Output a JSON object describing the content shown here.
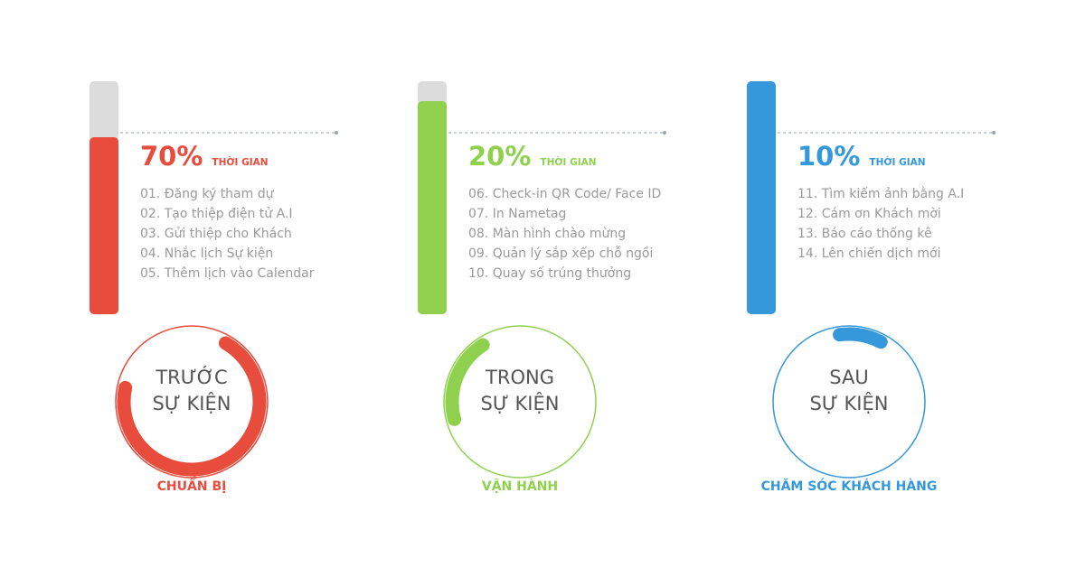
{
  "columns": [
    {
      "color": "#e84c3d",
      "percent": 70,
      "percent_label": "70%",
      "time_label": "THỜI GIAN",
      "items": [
        "01. Đăng ký tham dự",
        "02. Tạo thiệp điện tử A.I",
        "03. Gửi thiệp cho Khách",
        "04. Nhắc lịch Sự kiện",
        "05. Thêm lịch vào Calendar"
      ],
      "circle_title": [
        "TRƯỚC",
        "SỰ KIỆN"
      ],
      "caption": "CHUẨN BỊ"
    },
    {
      "color": "#8fd14f",
      "percent": 20,
      "percent_label": "20%",
      "time_label": "THỜI GIAN",
      "items": [
        "06. Check-in QR Code/ Face ID",
        "07. In Nametag",
        "08. Màn hình chào mừng",
        "09. Quản lý sắp xếp chỗ ngồi",
        "10. Quay số trúng thưởng"
      ],
      "circle_title": [
        "TRONG",
        "SỰ KIỆN"
      ],
      "caption": "VẬN HÀNH"
    },
    {
      "color": "#3498db",
      "percent": 10,
      "percent_label": "10%",
      "time_label": "THỜI GIAN",
      "items": [
        "11. Tìm kiếm ảnh bằng A.I",
        "12. Cám ơn Khách mời",
        "13. Báo cáo thống kê",
        "14. Lên chiến dịch mới"
      ],
      "circle_title": [
        "SAU",
        "SỰ KIỆN"
      ],
      "caption": "CHĂM SÓC KHÁCH HÀNG"
    }
  ]
}
